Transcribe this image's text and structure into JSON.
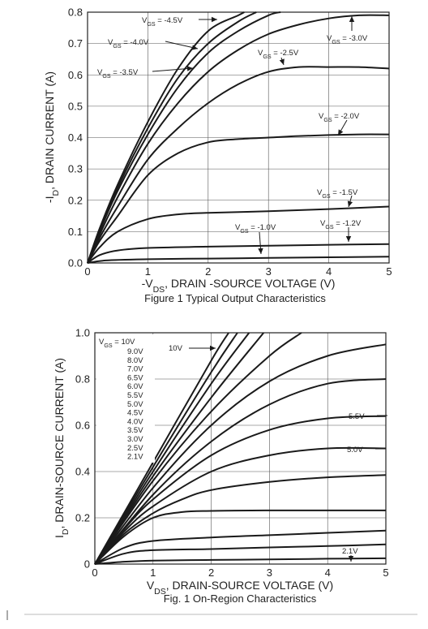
{
  "chart_data": [
    {
      "type": "line",
      "caption": "Figure 1 Typical Output Characteristics",
      "xlabel": "-V_DS, DRAIN -SOURCE VOLTAGE (V)",
      "ylabel": "-I_D, DRAIN CURRENT (A)",
      "xlim": [
        0,
        5
      ],
      "ylim": [
        0,
        0.8
      ],
      "xticks": [
        "0",
        "1",
        "2",
        "3",
        "4",
        "5"
      ],
      "yticks": [
        "0.0",
        "0.1",
        "0.2",
        "0.3",
        "0.4",
        "0.5",
        "0.6",
        "0.7",
        "0.8"
      ],
      "xtick_values": [
        0,
        1,
        2,
        3,
        4,
        5
      ],
      "ytick_values": [
        0,
        0.1,
        0.2,
        0.3,
        0.4,
        0.5,
        0.6,
        0.7,
        0.8
      ],
      "grid": true,
      "series": [
        {
          "name": "VGS = -4.5V",
          "x": [
            0,
            0.2,
            0.5,
            1.0,
            1.5,
            2.0,
            2.5,
            2.6
          ],
          "y": [
            0,
            0.11,
            0.25,
            0.45,
            0.62,
            0.74,
            0.79,
            0.8
          ]
        },
        {
          "name": "VGS = -4.0V",
          "x": [
            0,
            0.2,
            0.5,
            1.0,
            1.5,
            2.0,
            2.5,
            2.8
          ],
          "y": [
            0,
            0.1,
            0.24,
            0.43,
            0.59,
            0.7,
            0.77,
            0.8
          ]
        },
        {
          "name": "",
          "x": [
            0,
            0.2,
            0.5,
            1.0,
            1.5,
            2.0,
            2.5,
            3.0,
            3.2
          ],
          "y": [
            0,
            0.1,
            0.23,
            0.41,
            0.56,
            0.67,
            0.74,
            0.79,
            0.8
          ]
        },
        {
          "name": "VGS = -3.5V",
          "x": [
            0,
            0.2,
            0.5,
            1.0,
            1.5,
            2.0,
            2.5,
            3.0,
            3.5,
            4.0,
            4.5,
            5.0
          ],
          "y": [
            0,
            0.09,
            0.21,
            0.38,
            0.51,
            0.61,
            0.68,
            0.73,
            0.76,
            0.78,
            0.79,
            0.79
          ]
        },
        {
          "name": "VGS = -2.5V",
          "x": [
            0,
            0.2,
            0.5,
            1.0,
            1.5,
            2.0,
            2.5,
            3.0,
            3.5,
            4.0,
            4.5,
            5.0
          ],
          "y": [
            0,
            0.08,
            0.18,
            0.33,
            0.43,
            0.51,
            0.57,
            0.61,
            0.625,
            0.625,
            0.625,
            0.62
          ]
        },
        {
          "name": "VGS = -2.0V",
          "x": [
            0,
            0.2,
            0.5,
            1.0,
            1.5,
            2.0,
            2.5,
            3.0,
            3.5,
            4.0,
            4.5,
            5.0
          ],
          "y": [
            0,
            0.07,
            0.15,
            0.28,
            0.35,
            0.385,
            0.395,
            0.4,
            0.405,
            0.408,
            0.41,
            0.41
          ]
        },
        {
          "name": "VGS = -1.5V",
          "x": [
            0,
            0.2,
            0.5,
            1.0,
            1.5,
            2.0,
            3.0,
            4.0,
            5.0
          ],
          "y": [
            0,
            0.05,
            0.1,
            0.14,
            0.155,
            0.16,
            0.165,
            0.172,
            0.18
          ]
        },
        {
          "name": "VGS = -1.2V",
          "x": [
            0,
            0.2,
            0.5,
            1.0,
            2.0,
            3.0,
            4.0,
            5.0
          ],
          "y": [
            0,
            0.025,
            0.04,
            0.048,
            0.052,
            0.055,
            0.058,
            0.06
          ]
        },
        {
          "name": "VGS = -1.0V",
          "x": [
            0,
            0.3,
            1.0,
            2.0,
            3.0,
            4.0,
            5.0
          ],
          "y": [
            0,
            0.008,
            0.012,
            0.014,
            0.016,
            0.018,
            0.02
          ]
        }
      ],
      "annotations": [
        {
          "prefix": "V",
          "sub": "GS",
          "suffix": " = -4.5V"
        },
        {
          "prefix": "V",
          "sub": "GS",
          "suffix": " = -4.0V"
        },
        {
          "prefix": "V",
          "sub": "GS",
          "suffix": " = -3.5V"
        },
        {
          "prefix": "V",
          "sub": "GS",
          "suffix": " = -3.0V"
        },
        {
          "prefix": "V",
          "sub": "GS",
          "suffix": " = -2.5V"
        },
        {
          "prefix": "V",
          "sub": "GS",
          "suffix": " = -2.0V"
        },
        {
          "prefix": "V",
          "sub": "GS",
          "suffix": " = -1.5V"
        },
        {
          "prefix": "V",
          "sub": "GS",
          "suffix": " = -1.2V"
        },
        {
          "prefix": "V",
          "sub": "GS",
          "suffix": " = -1.0V"
        }
      ]
    },
    {
      "type": "line",
      "caption": "Fig. 1  On-Region Characteristics",
      "xlabel": "V_DS, DRAIN-SOURCE VOLTAGE (V)",
      "ylabel": "I_D, DRAIN-SOURCE CURRENT (A)",
      "xlim": [
        0,
        5
      ],
      "ylim": [
        0,
        1.0
      ],
      "xticks": [
        "0",
        "1",
        "2",
        "3",
        "4",
        "5"
      ],
      "yticks": [
        "0",
        "0.2",
        "0.4",
        "0.6",
        "0.8",
        "1.0"
      ],
      "xtick_values": [
        0,
        1,
        2,
        3,
        4,
        5
      ],
      "ytick_values": [
        0,
        0.2,
        0.4,
        0.6,
        0.8,
        1.0
      ],
      "grid": true,
      "legend_header": {
        "prefix": "V",
        "sub": "GS",
        "suffix": " = 10V"
      },
      "legend_items": [
        "9.0V",
        "8.0V",
        "7.0V",
        "6.5V",
        "6.0V",
        "5.5V",
        "5.0V",
        "4.5V",
        "4.0V",
        "3.5V",
        "3.0V",
        "2.5V",
        "2.1V"
      ],
      "series": [
        {
          "name": "10V",
          "x": [
            0,
            1.0,
            2.0,
            2.3
          ],
          "y": [
            0,
            0.44,
            0.88,
            1.0
          ]
        },
        {
          "name": "9.0V",
          "x": [
            0,
            1.0,
            2.0,
            2.45
          ],
          "y": [
            0,
            0.42,
            0.83,
            1.0
          ]
        },
        {
          "name": "8.0V",
          "x": [
            0,
            1.0,
            2.0,
            2.65
          ],
          "y": [
            0,
            0.4,
            0.78,
            1.0
          ]
        },
        {
          "name": "7.0V",
          "x": [
            0,
            1.0,
            2.0,
            2.9
          ],
          "y": [
            0,
            0.38,
            0.72,
            1.0
          ]
        },
        {
          "name": "6.5V",
          "x": [
            0,
            1.0,
            2.0,
            3.0,
            3.55
          ],
          "y": [
            0,
            0.36,
            0.66,
            0.9,
            1.0
          ]
        },
        {
          "name": "6.0V",
          "x": [
            0,
            1.0,
            2.0,
            3.0,
            4.0,
            5.0
          ],
          "y": [
            0,
            0.33,
            0.6,
            0.79,
            0.9,
            0.95
          ]
        },
        {
          "name": "5.5V",
          "x": [
            0,
            1.0,
            2.0,
            3.0,
            4.0,
            5.0
          ],
          "y": [
            0,
            0.3,
            0.53,
            0.69,
            0.78,
            0.8
          ]
        },
        {
          "name": "5.0V",
          "x": [
            0,
            0.5,
            1.0,
            2.0,
            3.0,
            4.0,
            5.0
          ],
          "y": [
            0,
            0.15,
            0.28,
            0.47,
            0.58,
            0.63,
            0.64
          ]
        },
        {
          "name": "4.5V",
          "x": [
            0,
            0.5,
            1.0,
            2.0,
            3.0,
            4.0,
            5.0
          ],
          "y": [
            0,
            0.14,
            0.25,
            0.4,
            0.47,
            0.5,
            0.5
          ]
        },
        {
          "name": "4.0V",
          "x": [
            0,
            0.5,
            1.0,
            1.5,
            2.0,
            3.0,
            4.0,
            5.0
          ],
          "y": [
            0,
            0.13,
            0.22,
            0.28,
            0.32,
            0.355,
            0.375,
            0.385
          ]
        },
        {
          "name": "3.5V",
          "x": [
            0,
            0.5,
            1.0,
            1.5,
            2.0,
            3.0,
            4.0,
            5.0
          ],
          "y": [
            0,
            0.12,
            0.2,
            0.225,
            0.23,
            0.232,
            0.232,
            0.232
          ]
        },
        {
          "name": "3.0V",
          "x": [
            0,
            0.5,
            1.0,
            2.0,
            3.0,
            4.0,
            5.0
          ],
          "y": [
            0,
            0.07,
            0.1,
            0.115,
            0.125,
            0.135,
            0.145
          ]
        },
        {
          "name": "2.5V",
          "x": [
            0,
            0.5,
            1.0,
            2.0,
            3.0,
            4.0,
            5.0
          ],
          "y": [
            0,
            0.045,
            0.06,
            0.065,
            0.072,
            0.078,
            0.085
          ]
        },
        {
          "name": "2.1V",
          "x": [
            0,
            0.5,
            1.0,
            2.0,
            3.0,
            4.0,
            5.0
          ],
          "y": [
            0,
            0.01,
            0.015,
            0.018,
            0.02,
            0.023,
            0.025
          ]
        }
      ],
      "annotations": [
        {
          "text": "10V"
        },
        {
          "text": "5.5V"
        },
        {
          "text": "5.0V"
        },
        {
          "text": "2.1V"
        }
      ]
    }
  ]
}
